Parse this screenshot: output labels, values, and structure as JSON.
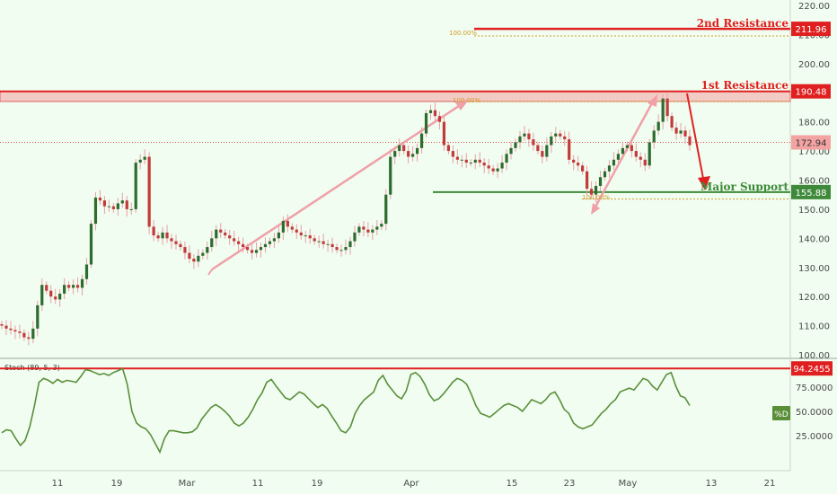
{
  "chart_data": {
    "type": "candlestick",
    "price_axis": {
      "ylim": [
        97,
        223
      ],
      "ticks": [
        "220.00",
        "210.00",
        "200.00",
        "190.00",
        "180.00",
        "170.00",
        "160.00",
        "150.00",
        "140.00",
        "130.00",
        "120.00",
        "110.00",
        "100.00"
      ]
    },
    "x_ticks": [
      "11",
      "19",
      "Mar",
      "11",
      "19",
      "Apr",
      "15",
      "23",
      "May",
      "13",
      "21"
    ],
    "price_series": {
      "close": [
        110,
        109,
        108.5,
        108,
        107.5,
        106,
        105.5,
        109,
        117,
        124,
        122,
        120,
        119,
        121,
        124,
        123,
        124,
        123,
        126,
        131,
        145,
        154,
        153,
        151,
        151,
        150,
        152,
        153,
        150,
        150,
        166,
        167,
        168,
        144,
        141,
        140,
        142,
        140,
        139,
        138,
        137,
        135,
        133,
        132,
        134,
        135,
        137,
        140,
        143,
        142,
        141,
        140,
        139,
        138,
        137,
        136,
        135,
        136,
        137,
        138,
        139,
        140,
        142,
        146,
        144,
        143,
        142,
        141,
        141,
        140,
        139,
        139,
        138,
        138,
        137,
        136,
        136,
        137,
        139,
        142,
        144,
        143,
        142,
        143,
        144,
        145,
        155,
        168,
        170,
        172,
        170,
        168,
        169,
        171,
        176,
        183,
        184,
        182,
        180,
        172,
        170,
        168,
        167,
        167,
        166,
        166,
        167,
        166,
        165,
        164,
        163,
        164,
        166,
        169,
        171,
        173,
        175,
        176,
        174,
        172,
        170,
        168,
        172,
        175,
        176,
        175,
        174,
        167,
        166,
        165,
        163,
        157,
        155,
        158,
        161,
        163,
        165,
        167,
        169,
        171,
        172,
        170,
        168,
        167,
        165,
        173,
        177,
        180,
        188,
        182,
        178,
        176,
        177,
        175,
        172
      ],
      "label_value": "172.94"
    },
    "levels": [
      {
        "name": "2nd Resistance",
        "value": "211.96",
        "color": "#e02020"
      },
      {
        "name": "1st Resistance",
        "value": "190.48",
        "color": "#e02020"
      },
      {
        "name": "Major Support",
        "value": "155.88",
        "color": "#3f8a3a"
      }
    ],
    "fib_labels": [
      "100.00%",
      "100.00%",
      "100.00%"
    ],
    "stochastic": {
      "title": "Stoch (89, 5, 3)",
      "ylim": [
        0,
        105
      ],
      "ticks": [
        "75.0000",
        "50.0000",
        "25.0000"
      ],
      "level": "94.2455",
      "series_label": "%D",
      "values": [
        28,
        31,
        30,
        22,
        15,
        20,
        34,
        55,
        80,
        84,
        82,
        79,
        83,
        80,
        82,
        81,
        80,
        86,
        93,
        92,
        90,
        88,
        89,
        87,
        90,
        92,
        94,
        78,
        50,
        38,
        34,
        32,
        26,
        17,
        8,
        22,
        30,
        30,
        29,
        28,
        28,
        29,
        33,
        42,
        48,
        54,
        57,
        54,
        50,
        45,
        38,
        35,
        38,
        44,
        52,
        62,
        69,
        80,
        83,
        76,
        70,
        64,
        62,
        66,
        70,
        68,
        63,
        58,
        54,
        57,
        53,
        45,
        38,
        30,
        28,
        34,
        48,
        56,
        62,
        66,
        70,
        82,
        87,
        78,
        72,
        66,
        63,
        71,
        88,
        90,
        86,
        78,
        67,
        61,
        63,
        68,
        74,
        80,
        84,
        82,
        78,
        68,
        56,
        48,
        46,
        44,
        48,
        52,
        56,
        58,
        56,
        54,
        50,
        56,
        62,
        60,
        58,
        62,
        68,
        70,
        62,
        52,
        48,
        38,
        34,
        32,
        34,
        36,
        42,
        48,
        52,
        58,
        62,
        70,
        72,
        74,
        72,
        78,
        84,
        82,
        76,
        72,
        80,
        88,
        90,
        76,
        66,
        64,
        56
      ]
    },
    "grid": false,
    "background": "#f0fdf0",
    "up_color": "#2e6b2e",
    "down_color": "#c23a3a"
  }
}
